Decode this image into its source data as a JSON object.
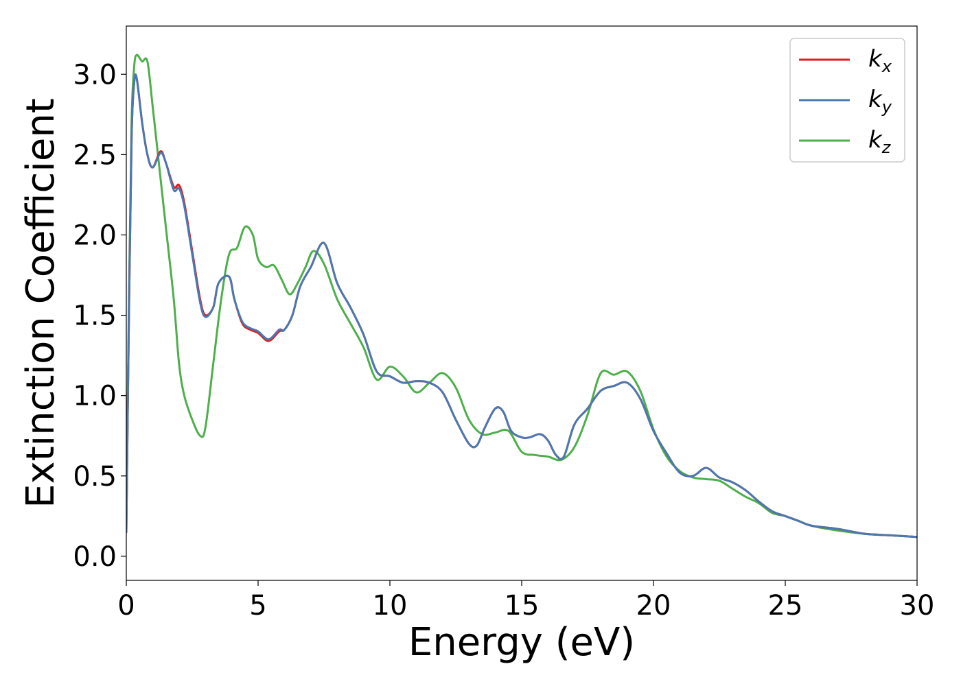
{
  "chart_data": {
    "type": "line",
    "title": "",
    "xlabel": "Energy (eV)",
    "ylabel": "Extinction Coefficient",
    "xlim": [
      0,
      30
    ],
    "ylim": [
      -0.15,
      3.3
    ],
    "xticks": [
      0,
      5,
      10,
      15,
      20,
      25,
      30
    ],
    "yticks": [
      0.0,
      0.5,
      1.0,
      1.5,
      2.0,
      2.5,
      3.0
    ],
    "xtick_labels": [
      "0",
      "5",
      "10",
      "15",
      "20",
      "25",
      "30"
    ],
    "ytick_labels": [
      "0.0",
      "0.5",
      "1.0",
      "1.5",
      "2.0",
      "2.5",
      "3.0"
    ],
    "grid": false,
    "legend_position": "top-right",
    "series": [
      {
        "name": "k_x",
        "legend_base": "k",
        "legend_sub": "x",
        "color": "#e41a1c",
        "x": [
          0,
          0.1,
          0.2,
          0.3,
          0.4,
          0.6,
          0.8,
          1.0,
          1.3,
          1.5,
          1.8,
          2.0,
          2.2,
          2.5,
          2.8,
          3.0,
          3.3,
          3.5,
          3.9,
          4.1,
          4.4,
          4.7,
          5.0,
          5.4,
          5.8,
          6.0,
          6.3,
          6.6,
          7.0,
          7.5,
          8.0,
          8.5,
          9.0,
          9.5,
          10.0,
          10.5,
          11.0,
          11.5,
          12.0,
          12.5,
          13.0,
          13.3,
          13.6,
          14.0,
          14.3,
          14.6,
          15.0,
          15.3,
          15.7,
          16.0,
          16.3,
          16.6,
          17.0,
          17.5,
          18.0,
          18.5,
          19.0,
          19.5,
          20.0,
          20.5,
          21.0,
          21.5,
          22.0,
          22.5,
          23.0,
          23.5,
          24.0,
          24.5,
          25.0,
          25.5,
          26.0,
          27.0,
          28.0,
          29.0,
          30.0
        ],
        "y": [
          0.15,
          1.5,
          2.6,
          2.95,
          2.97,
          2.7,
          2.5,
          2.42,
          2.52,
          2.45,
          2.3,
          2.31,
          2.2,
          1.9,
          1.6,
          1.5,
          1.55,
          1.7,
          1.74,
          1.6,
          1.45,
          1.41,
          1.39,
          1.34,
          1.4,
          1.41,
          1.5,
          1.68,
          1.8,
          1.95,
          1.7,
          1.55,
          1.38,
          1.15,
          1.12,
          1.08,
          1.09,
          1.08,
          1.02,
          0.85,
          0.7,
          0.69,
          0.8,
          0.92,
          0.9,
          0.78,
          0.74,
          0.74,
          0.76,
          0.72,
          0.63,
          0.62,
          0.82,
          0.92,
          1.03,
          1.06,
          1.08,
          0.98,
          0.78,
          0.64,
          0.52,
          0.5,
          0.55,
          0.49,
          0.46,
          0.41,
          0.34,
          0.28,
          0.25,
          0.22,
          0.19,
          0.17,
          0.14,
          0.13,
          0.12
        ]
      },
      {
        "name": "k_y",
        "legend_base": "k",
        "legend_sub": "y",
        "color": "#4a78b0",
        "x": [
          0,
          0.1,
          0.2,
          0.3,
          0.4,
          0.6,
          0.8,
          1.0,
          1.3,
          1.5,
          1.8,
          2.0,
          2.2,
          2.5,
          2.8,
          3.0,
          3.3,
          3.5,
          3.9,
          4.1,
          4.4,
          4.7,
          5.0,
          5.4,
          5.8,
          6.0,
          6.3,
          6.6,
          7.0,
          7.5,
          8.0,
          8.5,
          9.0,
          9.5,
          10.0,
          10.5,
          11.0,
          11.5,
          12.0,
          12.5,
          13.0,
          13.3,
          13.6,
          14.0,
          14.3,
          14.6,
          15.0,
          15.3,
          15.7,
          16.0,
          16.3,
          16.6,
          17.0,
          17.5,
          18.0,
          18.5,
          19.0,
          19.5,
          20.0,
          20.5,
          21.0,
          21.5,
          22.0,
          22.5,
          23.0,
          23.5,
          24.0,
          24.5,
          25.0,
          25.5,
          26.0,
          27.0,
          28.0,
          29.0,
          30.0
        ],
        "y": [
          0.15,
          1.5,
          2.6,
          2.95,
          2.97,
          2.7,
          2.5,
          2.42,
          2.51,
          2.45,
          2.28,
          2.29,
          2.18,
          1.88,
          1.58,
          1.49,
          1.55,
          1.7,
          1.74,
          1.6,
          1.46,
          1.42,
          1.4,
          1.35,
          1.41,
          1.41,
          1.5,
          1.68,
          1.8,
          1.95,
          1.7,
          1.55,
          1.38,
          1.15,
          1.12,
          1.08,
          1.09,
          1.08,
          1.02,
          0.85,
          0.7,
          0.69,
          0.8,
          0.92,
          0.9,
          0.78,
          0.74,
          0.74,
          0.76,
          0.72,
          0.63,
          0.62,
          0.82,
          0.92,
          1.03,
          1.06,
          1.08,
          0.98,
          0.78,
          0.64,
          0.52,
          0.5,
          0.55,
          0.49,
          0.46,
          0.41,
          0.34,
          0.28,
          0.25,
          0.22,
          0.19,
          0.17,
          0.14,
          0.13,
          0.12
        ]
      },
      {
        "name": "k_z",
        "legend_base": "k",
        "legend_sub": "z",
        "color": "#4daf4a",
        "x": [
          0,
          0.1,
          0.2,
          0.3,
          0.4,
          0.6,
          0.8,
          1.0,
          1.2,
          1.5,
          1.8,
          2.0,
          2.2,
          2.5,
          2.8,
          3.0,
          3.3,
          3.6,
          3.9,
          4.2,
          4.5,
          4.8,
          5.0,
          5.3,
          5.6,
          5.9,
          6.2,
          6.5,
          6.8,
          7.1,
          7.5,
          8.0,
          8.5,
          9.0,
          9.5,
          10.0,
          10.5,
          11.0,
          11.5,
          12.0,
          12.5,
          13.0,
          13.5,
          14.0,
          14.5,
          15.0,
          15.5,
          16.0,
          16.5,
          17.0,
          17.5,
          18.0,
          18.5,
          19.0,
          19.5,
          20.0,
          20.5,
          21.0,
          21.5,
          22.0,
          22.5,
          23.0,
          23.5,
          24.0,
          24.5,
          25.0,
          25.5,
          26.0,
          27.0,
          28.0,
          29.0,
          30.0
        ],
        "y": [
          0.15,
          1.6,
          2.7,
          3.05,
          3.12,
          3.08,
          3.08,
          2.8,
          2.5,
          2.05,
          1.6,
          1.2,
          1.0,
          0.85,
          0.75,
          0.8,
          1.2,
          1.6,
          1.88,
          1.92,
          2.05,
          2.0,
          1.85,
          1.8,
          1.81,
          1.72,
          1.63,
          1.7,
          1.8,
          1.9,
          1.82,
          1.6,
          1.45,
          1.3,
          1.1,
          1.18,
          1.12,
          1.02,
          1.08,
          1.14,
          1.05,
          0.85,
          0.76,
          0.77,
          0.78,
          0.65,
          0.63,
          0.62,
          0.6,
          0.68,
          0.88,
          1.14,
          1.13,
          1.15,
          1.03,
          0.79,
          0.62,
          0.53,
          0.49,
          0.48,
          0.47,
          0.42,
          0.37,
          0.33,
          0.27,
          0.25,
          0.22,
          0.19,
          0.16,
          0.14,
          0.13,
          0.12
        ]
      }
    ]
  }
}
